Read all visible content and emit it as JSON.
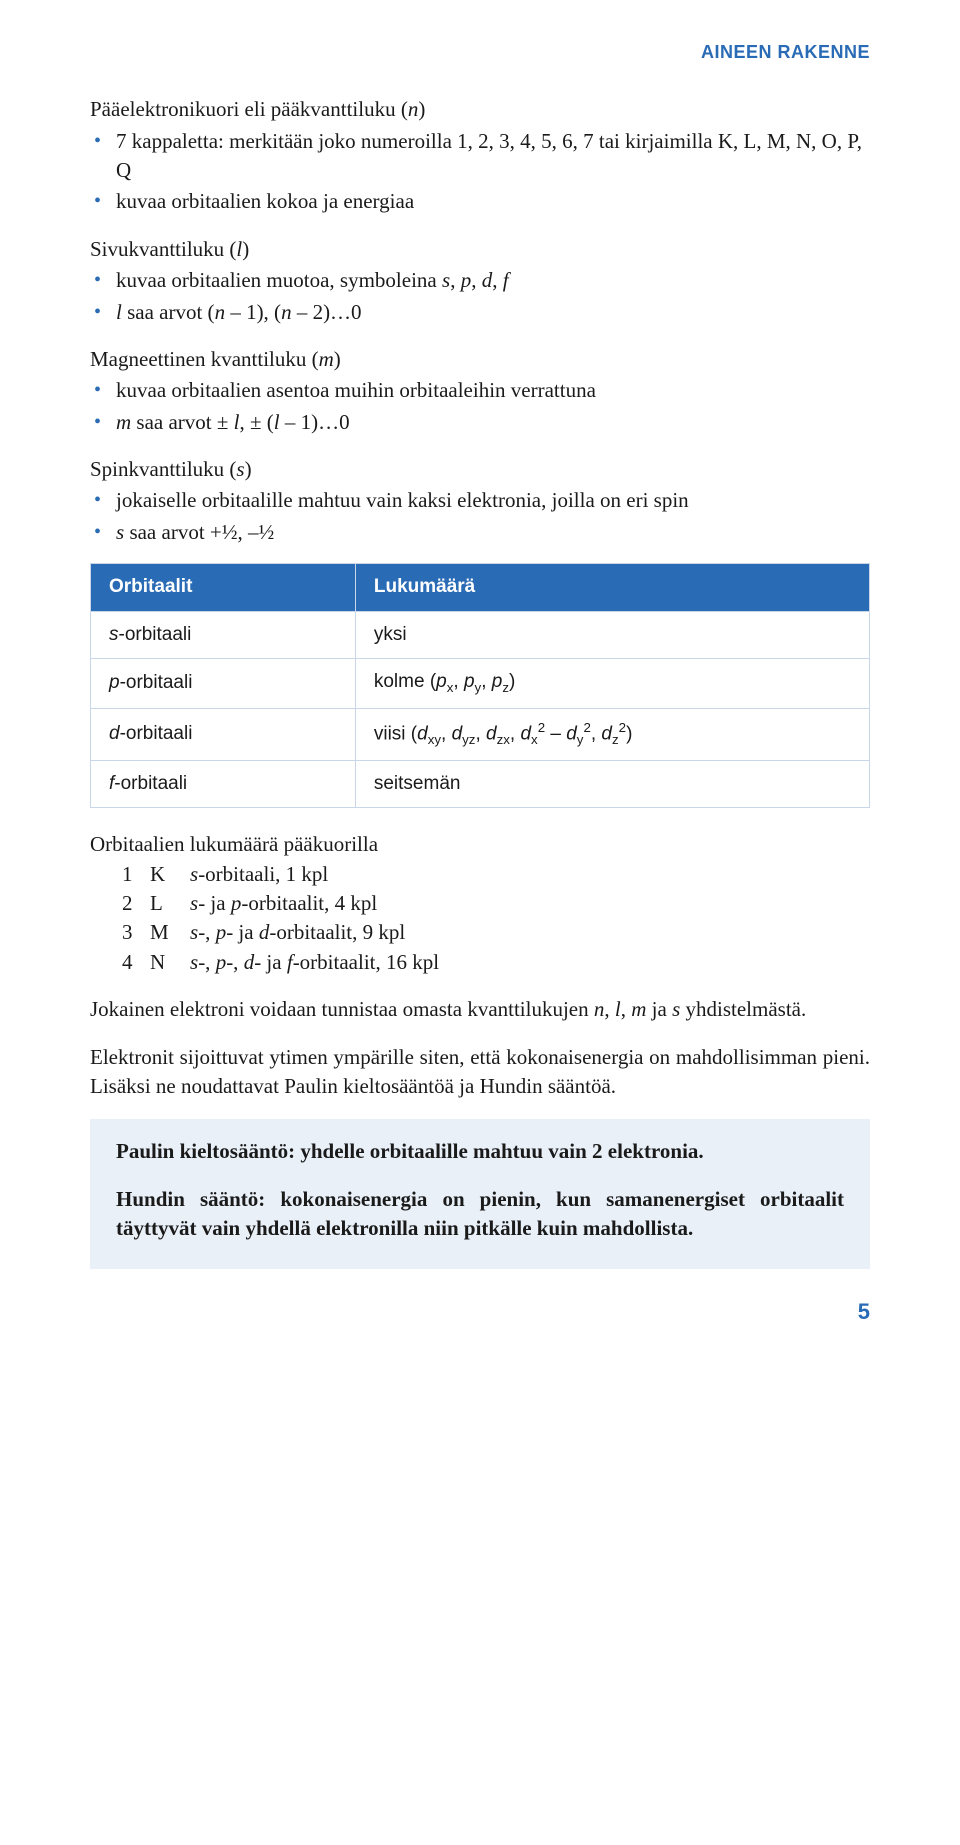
{
  "colors": {
    "accent_blue": "#2a6bb5",
    "table_border": "#c9d6e8",
    "rulebox_bg": "#e9f0f8",
    "text": "#1a1a1a",
    "bullet": "#2a6bb5"
  },
  "header": {
    "section_label": "AINEEN RAKENNE"
  },
  "principal": {
    "title_html": "Pääelektronikuori eli pääkvanttiluku (<span class='em'>n</span>)",
    "items": [
      "7 kappaletta: merkitään joko numeroilla 1, 2, 3, 4, 5, 6, 7 tai kirjaimilla K, L, M, N, O, P, Q",
      "kuvaa orbitaalien kokoa ja energiaa"
    ]
  },
  "azimuthal": {
    "title_html": "Sivukvanttiluku (<span class='em'>l</span>)",
    "items_html": [
      "kuvaa orbitaalien muotoa, symboleina <span class='em'>s</span>, <span class='em'>p</span>, <span class='em'>d</span>, <span class='em'>f</span>",
      "<span class='em'>l</span> saa arvot (<span class='em'>n</span> – 1), (<span class='em'>n</span> – 2)…0"
    ]
  },
  "magnetic": {
    "title_html": "Magneettinen kvanttiluku (<span class='em'>m</span>)",
    "items_html": [
      "kuvaa orbitaalien asentoa muihin orbitaaleihin verrattuna",
      "<span class='em'>m</span> saa arvot ± <span class='em'>l</span>, ± (<span class='em'>l</span> – 1)…0"
    ]
  },
  "spin": {
    "title_html": "Spinkvanttiluku (<span class='em'>s</span>)",
    "items_html": [
      "jokaiselle orbitaalille mahtuu vain kaksi elektronia, joilla on eri spin",
      "<span class='em'>s</span> saa arvot +½, –½"
    ]
  },
  "orbital_table": {
    "headers": [
      "Orbitaalit",
      "Lukumäärä"
    ],
    "header_bg": "#2a6bb5",
    "rows": [
      {
        "name_html": "<span class='em'>s</span>-orbitaali",
        "count_html": "yksi"
      },
      {
        "name_html": "<span class='em'>p</span>-orbitaali",
        "count_html": "kolme (<span class='em'>p</span><sub>x</sub>, <span class='em'>p</span><sub>y</sub>, <span class='em'>p</span><sub>z</sub>)"
      },
      {
        "name_html": "<span class='em'>d</span>-orbitaali",
        "count_html": "viisi (<span class='em'>d</span><sub>xy</sub>, <span class='em'>d</span><sub>yz</sub>, <span class='em'>d</span><sub>zx</sub>, <span class='em'>d</span><sub>x</sub><sup>2</sup> – <span class='em'>d</span><sub>y</sub><sup>2</sup>, <span class='em'>d</span><sub>z</sub><sup>2</sup>)"
      },
      {
        "name_html": "<span class='em'>f</span>-orbitaali",
        "count_html": "seitsemän"
      }
    ]
  },
  "shell_list": {
    "title": "Orbitaalien lukumäärä pääkuorilla",
    "rows": [
      {
        "n": "1",
        "letter": "K",
        "desc_html": "<span class='em'>s</span>-orbitaali, 1 kpl"
      },
      {
        "n": "2",
        "letter": "L",
        "desc_html": "<span class='em'>s</span>- ja <span class='em'>p</span>-orbitaalit, 4 kpl"
      },
      {
        "n": "3",
        "letter": "M",
        "desc_html": "<span class='em'>s</span>-, <span class='em'>p</span>- ja <span class='em'>d</span>-orbitaalit, 9 kpl"
      },
      {
        "n": "4",
        "letter": "N",
        "desc_html": "<span class='em'>s</span>-, <span class='em'>p</span>-, <span class='em'>d</span>- ja <span class='em'>f</span>-orbitaalit, 16 kpl"
      }
    ]
  },
  "paragraphs": {
    "p1_html": "Jokainen elektroni voidaan tunnistaa omasta kvanttilukujen <span class='em'>n</span>, <span class='em'>l</span>, <span class='em'>m</span> ja <span class='em'>s</span> yhdistelmästä.",
    "p2": "Elektronit sijoittuvat ytimen ympärille siten, että kokonaisenergia on mahdollisimman pieni. Lisäksi ne noudattavat Paulin kieltosääntöä ja Hundin sääntöä."
  },
  "rulebox": {
    "rule1": "Paulin kieltosääntö: yhdelle orbitaalille mahtuu vain 2 elektronia.",
    "rule2": "Hundin sääntö: kokonaisenergia on pienin, kun saman­energiset orbitaalit täyttyvät vain yhdellä elektronilla niin pitkälle kuin mahdollista."
  },
  "page_number": "5"
}
